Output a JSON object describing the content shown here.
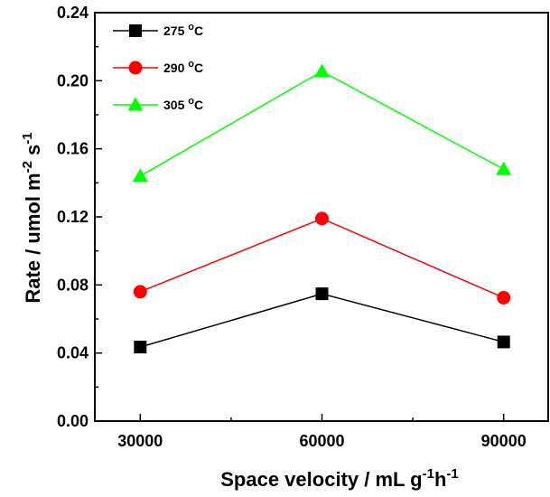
{
  "chart_data": {
    "type": "line",
    "title": "",
    "x": [
      30000,
      60000,
      90000
    ],
    "xticks": [
      "30000",
      "60000",
      "90000"
    ],
    "xlim": [
      22500,
      97500
    ],
    "xlabel": {
      "main": "Space velocity / mL g",
      "sup1": "-1",
      "mid": "h",
      "sup2": "-1"
    },
    "ylabel": {
      "main": "Rate / umol m",
      "sup1": "-2",
      "mid": " s",
      "sup2": "-1"
    },
    "ylim": [
      0,
      0.24
    ],
    "yticks": [
      "0.00",
      "0.04",
      "0.08",
      "0.12",
      "0.16",
      "0.20",
      "0.24"
    ],
    "ytick_values": [
      0,
      0.04,
      0.08,
      0.12,
      0.16,
      0.2,
      0.24
    ],
    "grid": false,
    "legend_position": "top-left",
    "series": [
      {
        "name": "275",
        "unit": "C",
        "marker": "square",
        "color": "#000000",
        "values": [
          0.0435,
          0.0748,
          0.0465
        ]
      },
      {
        "name": "290",
        "unit": "C",
        "marker": "circle",
        "color": "#ff0000",
        "values": [
          0.076,
          0.119,
          0.0725
        ]
      },
      {
        "name": "305",
        "unit": "C",
        "marker": "triangle",
        "color": "#00ff00",
        "values": [
          0.144,
          0.2055,
          0.148
        ]
      }
    ]
  }
}
